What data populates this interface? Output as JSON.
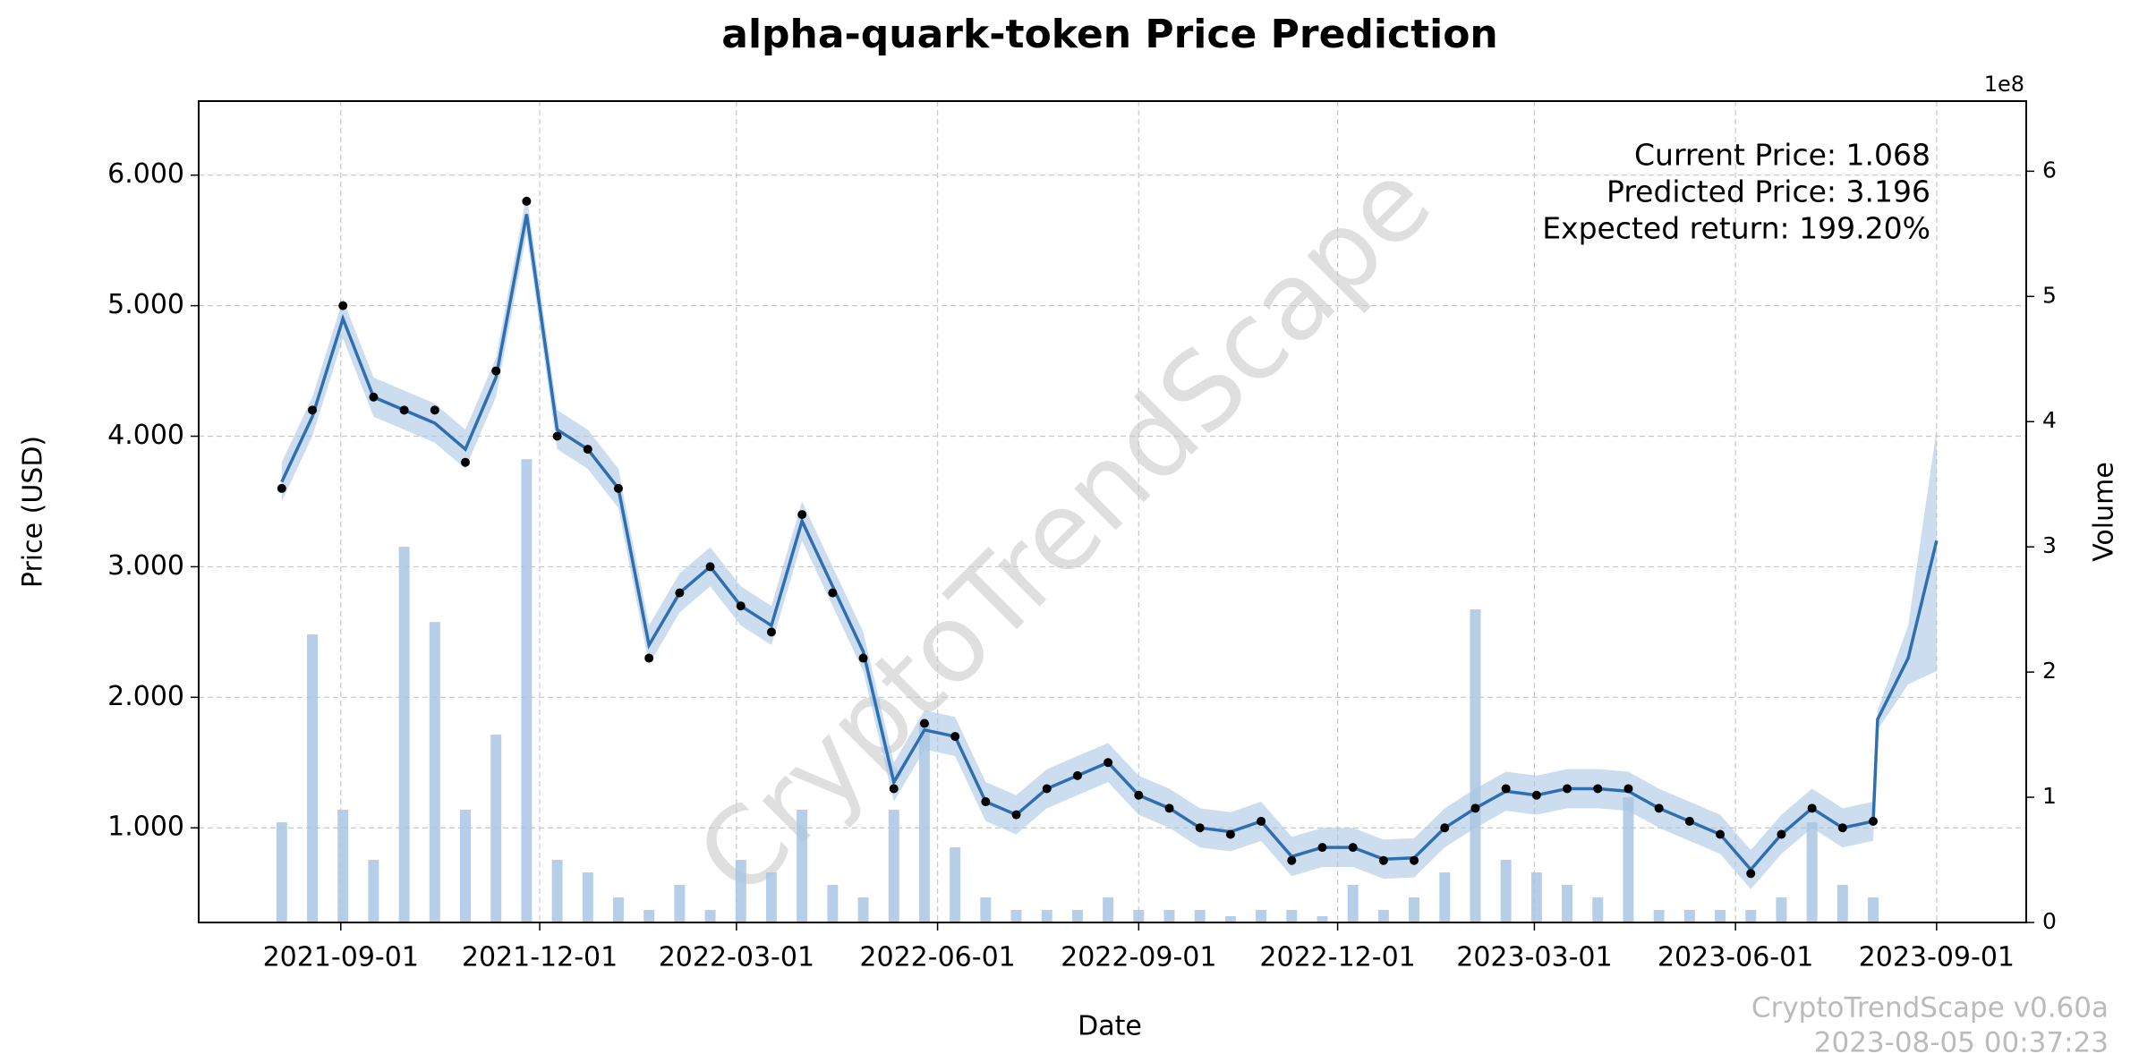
{
  "chart_data": {
    "type": "forecast",
    "title": "alpha-quark-token Price Prediction",
    "xlabel": "Date",
    "ylabel": "Price (USD)",
    "y2label": "Volume",
    "y2offset": "1e8",
    "annotations": [
      "Current Price: 1.068",
      "Predicted Price: 3.196",
      "Expected return: 199.20%"
    ],
    "watermark": "CryptoTrendScape",
    "footer": [
      "CryptoTrendScape v0.60a",
      "2023-08-05 00:37:23"
    ],
    "x": [
      "2021-08-05",
      "2021-08-19",
      "2021-09-02",
      "2021-09-16",
      "2021-09-30",
      "2021-10-14",
      "2021-10-28",
      "2021-11-11",
      "2021-11-25",
      "2021-12-09",
      "2021-12-23",
      "2022-01-06",
      "2022-01-20",
      "2022-02-03",
      "2022-02-17",
      "2022-03-03",
      "2022-03-17",
      "2022-03-31",
      "2022-04-14",
      "2022-04-28",
      "2022-05-12",
      "2022-05-26",
      "2022-06-09",
      "2022-06-23",
      "2022-07-07",
      "2022-07-21",
      "2022-08-04",
      "2022-08-18",
      "2022-09-01",
      "2022-09-15",
      "2022-09-29",
      "2022-10-13",
      "2022-10-27",
      "2022-11-10",
      "2022-11-24",
      "2022-12-08",
      "2022-12-22",
      "2023-01-05",
      "2023-01-19",
      "2023-02-02",
      "2023-02-16",
      "2023-03-02",
      "2023-03-16",
      "2023-03-30",
      "2023-04-13",
      "2023-04-27",
      "2023-05-11",
      "2023-05-25",
      "2023-06-08",
      "2023-06-22",
      "2023-07-06",
      "2023-07-20",
      "2023-08-03",
      "2023-08-05",
      "2023-08-19",
      "2023-09-01"
    ],
    "actual": {
      "color": "#000000",
      "values": [
        3.6,
        4.2,
        5.0,
        4.3,
        4.2,
        4.2,
        3.8,
        4.5,
        5.8,
        4.0,
        3.9,
        3.6,
        2.3,
        2.8,
        3.0,
        2.7,
        2.5,
        3.4,
        2.8,
        2.3,
        1.3,
        1.8,
        1.7,
        1.2,
        1.1,
        1.3,
        1.4,
        1.5,
        1.25,
        1.15,
        1.0,
        0.95,
        1.05,
        0.75,
        0.85,
        0.85,
        0.75,
        0.75,
        1.0,
        1.15,
        1.3,
        1.25,
        1.3,
        1.3,
        1.3,
        1.15,
        1.05,
        0.95,
        0.65,
        0.95,
        1.15,
        1.0,
        1.05,
        null,
        null,
        null
      ]
    },
    "fit": {
      "color": "#2f6fb0",
      "values": [
        3.65,
        4.15,
        4.9,
        4.3,
        4.2,
        4.1,
        3.9,
        4.45,
        5.7,
        4.05,
        3.9,
        3.6,
        2.4,
        2.8,
        3.0,
        2.7,
        2.55,
        3.35,
        2.85,
        2.35,
        1.35,
        1.75,
        1.7,
        1.2,
        1.1,
        1.3,
        1.4,
        1.5,
        1.25,
        1.15,
        1.0,
        0.97,
        1.05,
        0.78,
        0.85,
        0.85,
        0.76,
        0.77,
        1.0,
        1.15,
        1.28,
        1.25,
        1.3,
        1.3,
        1.28,
        1.15,
        1.05,
        0.95,
        0.68,
        0.95,
        1.15,
        1.0,
        1.05,
        1.83,
        2.3,
        3.2
      ]
    },
    "band": {
      "color": "#a9c6e3",
      "lower": [
        3.5,
        4.0,
        4.75,
        4.15,
        4.05,
        3.95,
        3.75,
        4.3,
        5.55,
        3.9,
        3.75,
        3.45,
        2.25,
        2.65,
        2.85,
        2.55,
        2.4,
        3.2,
        2.7,
        2.2,
        1.2,
        1.6,
        1.55,
        1.05,
        0.95,
        1.15,
        1.25,
        1.35,
        1.1,
        1.0,
        0.85,
        0.82,
        0.9,
        0.63,
        0.7,
        0.7,
        0.61,
        0.62,
        0.85,
        1.0,
        1.13,
        1.1,
        1.15,
        1.15,
        1.13,
        1.0,
        0.9,
        0.8,
        0.53,
        0.8,
        1.0,
        0.85,
        0.9,
        1.75,
        2.1,
        2.2
      ],
      "upper": [
        3.8,
        4.3,
        5.05,
        4.45,
        4.35,
        4.25,
        4.05,
        4.6,
        5.85,
        4.2,
        4.05,
        3.75,
        2.55,
        2.95,
        3.15,
        2.85,
        2.7,
        3.5,
        3.0,
        2.5,
        1.5,
        1.9,
        1.85,
        1.35,
        1.25,
        1.45,
        1.55,
        1.65,
        1.4,
        1.3,
        1.15,
        1.12,
        1.2,
        0.93,
        1.0,
        1.0,
        0.91,
        0.92,
        1.15,
        1.3,
        1.43,
        1.4,
        1.45,
        1.45,
        1.43,
        1.3,
        1.2,
        1.1,
        0.83,
        1.1,
        1.3,
        1.15,
        1.2,
        1.9,
        2.55,
        4.05
      ]
    },
    "volume": {
      "color": "#a9c6e3",
      "axis": "y2",
      "values": [
        0.8,
        2.3,
        0.9,
        0.5,
        3.0,
        2.4,
        0.9,
        1.5,
        3.7,
        0.5,
        0.4,
        0.2,
        0.1,
        0.3,
        0.1,
        0.5,
        0.4,
        0.9,
        0.3,
        0.2,
        0.9,
        1.6,
        0.6,
        0.2,
        0.1,
        0.1,
        0.1,
        0.2,
        0.1,
        0.1,
        0.1,
        0.05,
        0.1,
        0.1,
        0.05,
        0.3,
        0.1,
        0.2,
        0.4,
        2.5,
        0.5,
        0.4,
        0.3,
        0.2,
        1.0,
        0.1,
        0.1,
        0.1,
        0.1,
        0.2,
        0.8,
        0.3,
        0.2,
        null,
        null,
        null
      ]
    },
    "xlim": [
      "2021-06-28",
      "2023-10-12"
    ],
    "xticks": [
      "2021-09-01",
      "2021-12-01",
      "2022-03-01",
      "2022-06-01",
      "2022-09-01",
      "2022-12-01",
      "2023-03-01",
      "2023-06-01",
      "2023-09-01"
    ],
    "ylim": [
      0.275,
      6.567
    ],
    "yticks": [
      {
        "value": 1,
        "label": "1.000"
      },
      {
        "value": 2,
        "label": "2.000"
      },
      {
        "value": 3,
        "label": "3.000"
      },
      {
        "value": 4,
        "label": "4.000"
      },
      {
        "value": 5,
        "label": "5.000"
      },
      {
        "value": 6,
        "label": "6.000"
      }
    ],
    "y2lim": [
      0,
      6.56
    ],
    "y2ticks": [
      0,
      1,
      2,
      3,
      4,
      5,
      6
    ],
    "grid": true
  }
}
